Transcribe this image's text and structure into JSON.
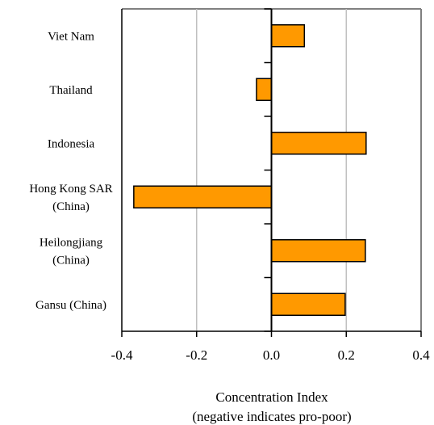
{
  "chart_data": {
    "type": "bar",
    "orientation": "horizontal",
    "categories": [
      [
        "Viet Nam"
      ],
      [
        "Thailand"
      ],
      [
        "Indonesia"
      ],
      [
        "Hong Kong SAR",
        "(China)"
      ],
      [
        "Heilongjiang",
        "(China)"
      ],
      [
        "Gansu (China)"
      ]
    ],
    "values": [
      0.088,
      -0.04,
      0.253,
      -0.368,
      0.251,
      0.197
    ],
    "xlim": [
      -0.4,
      0.4
    ],
    "xticks": [
      -0.4,
      -0.2,
      0.0,
      0.2,
      0.4
    ],
    "xtick_labels": [
      "-0.4",
      "-0.2",
      "0.0",
      "0.2",
      "0.4"
    ],
    "xlabel": [
      "Concentration Index",
      "(negative indicates pro-poor)"
    ],
    "title": "",
    "grid": "vertical",
    "colors": {
      "bar_fill": "#FF9900",
      "bar_stroke": "#000000",
      "grid": "#C0C0C0",
      "frame": "#808080"
    }
  }
}
